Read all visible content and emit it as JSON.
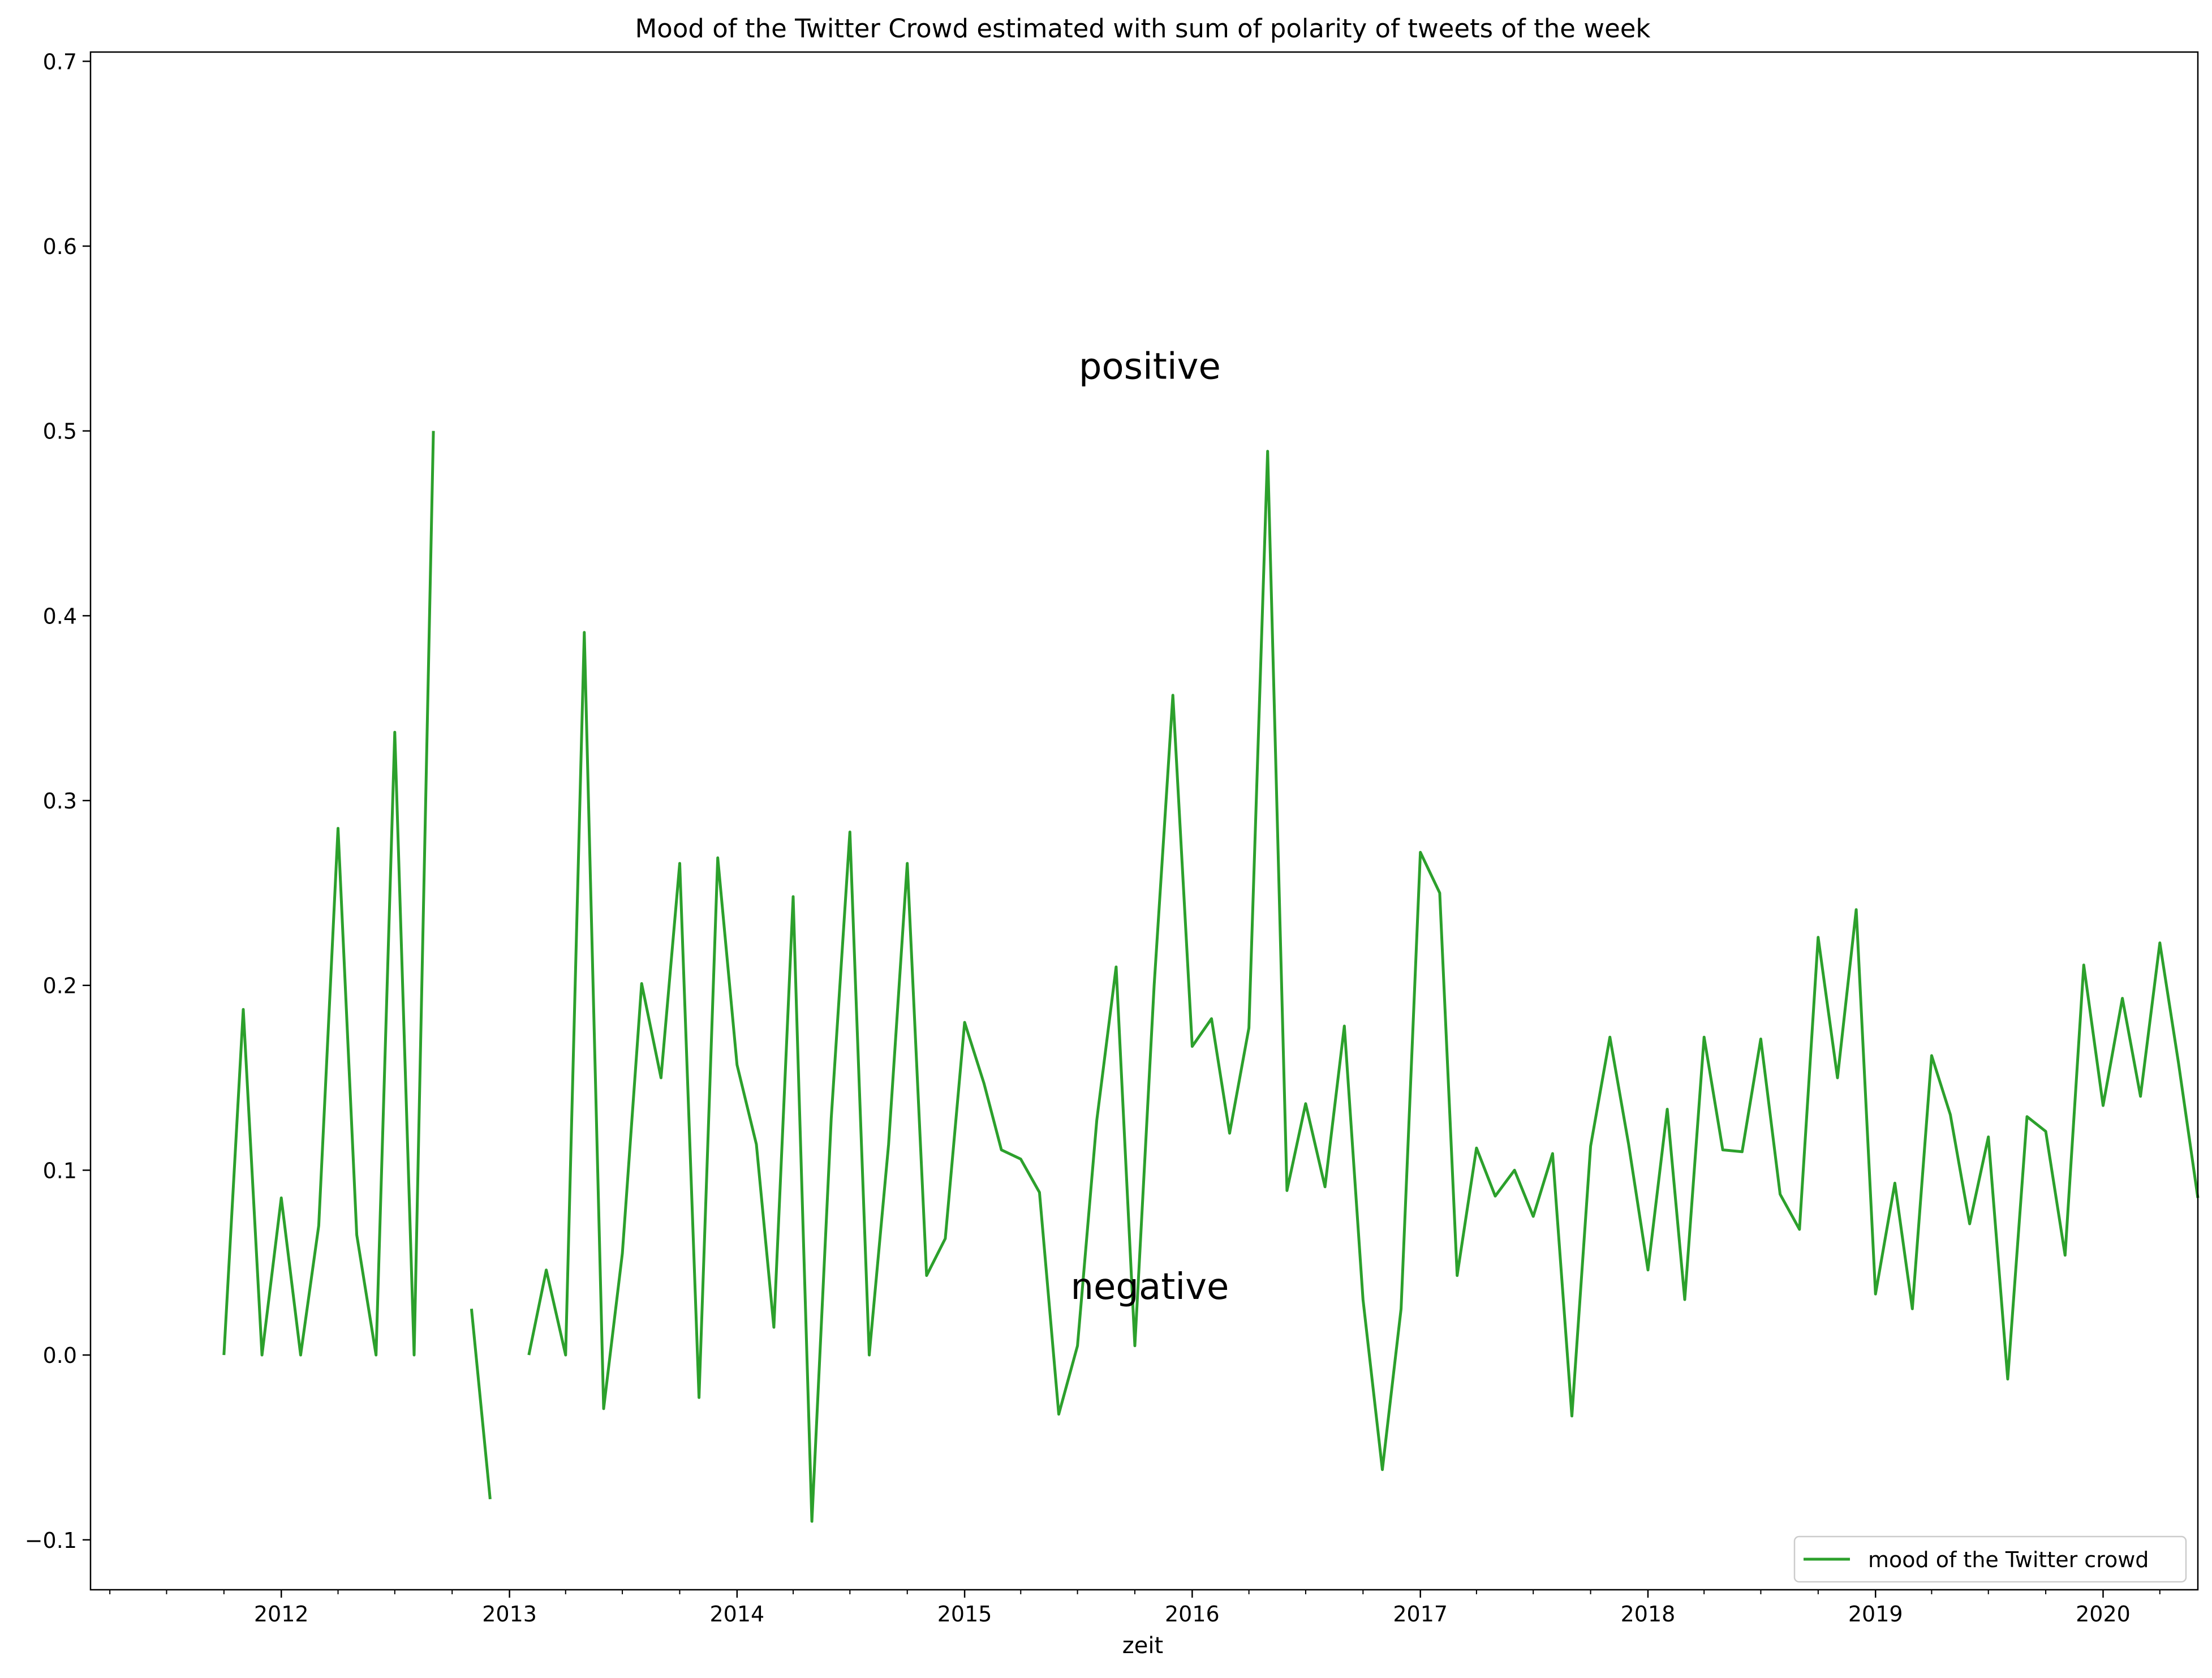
{
  "chart_data": {
    "type": "line",
    "title": "Mood of the Twitter Crowd estimated with sum of polarity of tweets of the week",
    "xlabel": "zeit",
    "ylabel": "",
    "xlim": [
      "2011-03-01",
      "2020-06-01"
    ],
    "ylim": [
      -0.127,
      0.705
    ],
    "y_ticks": [
      -0.1,
      0.0,
      0.1,
      0.2,
      0.3,
      0.4,
      0.5,
      0.6,
      0.7
    ],
    "y_tick_labels": [
      "−0.1",
      "0.0",
      "0.1",
      "0.2",
      "0.3",
      "0.4",
      "0.5",
      "0.6",
      "0.7"
    ],
    "x_ticks": [
      "2012-01-01",
      "2013-01-01",
      "2014-01-01",
      "2015-01-01",
      "2016-01-01",
      "2017-01-01",
      "2018-01-01",
      "2019-01-01",
      "2020-01-01"
    ],
    "x_tick_labels": [
      "2012",
      "2013",
      "2014",
      "2015",
      "2016",
      "2017",
      "2018",
      "2019",
      "2020"
    ],
    "grid": false,
    "legend_position": "lower-right",
    "annotations": [
      {
        "text": "positive",
        "x": "2015-10-25",
        "y": 0.535
      },
      {
        "text": "negative",
        "x": "2015-10-25",
        "y": 0.037
      }
    ],
    "series": [
      {
        "name": "mood of the Twitter crowd",
        "color": "#2ca02c",
        "points": [
          [
            "2011-10-01",
            0.0
          ],
          [
            "2011-11-01",
            0.187
          ],
          [
            "2011-12-01",
            0.0
          ],
          [
            "2012-01-01",
            0.085
          ],
          [
            "2012-02-01",
            0.0
          ],
          [
            "2012-03-01",
            0.07
          ],
          [
            "2012-04-01",
            0.285
          ],
          [
            "2012-05-01",
            0.065
          ],
          [
            "2012-06-01",
            0.0
          ],
          [
            "2012-07-01",
            0.337
          ],
          [
            "2012-08-01",
            0.0
          ],
          [
            "2012-09-01",
            0.5
          ],
          [
            "2012-10-01",
            null
          ],
          [
            "2012-11-01",
            0.025
          ],
          [
            "2012-12-01",
            -0.078
          ],
          [
            "2013-01-01",
            null
          ],
          [
            "2013-02-01",
            0.0
          ],
          [
            "2013-03-01",
            0.046
          ],
          [
            "2013-04-01",
            0.0
          ],
          [
            "2013-05-01",
            0.391
          ],
          [
            "2013-06-01",
            -0.029
          ],
          [
            "2013-07-01",
            0.055
          ],
          [
            "2013-08-01",
            0.201
          ],
          [
            "2013-09-01",
            0.15
          ],
          [
            "2013-10-01",
            0.266
          ],
          [
            "2013-11-01",
            -0.023
          ],
          [
            "2013-12-01",
            0.269
          ],
          [
            "2014-01-01",
            0.157
          ],
          [
            "2014-02-01",
            0.114
          ],
          [
            "2014-03-01",
            0.015
          ],
          [
            "2014-04-01",
            0.248
          ],
          [
            "2014-05-01",
            -0.09
          ],
          [
            "2014-06-01",
            0.128
          ],
          [
            "2014-07-01",
            0.283
          ],
          [
            "2014-08-01",
            0.0
          ],
          [
            "2014-09-01",
            0.114
          ],
          [
            "2014-10-01",
            0.266
          ],
          [
            "2014-11-01",
            0.043
          ],
          [
            "2014-12-01",
            0.063
          ],
          [
            "2015-01-01",
            0.18
          ],
          [
            "2015-02-01",
            0.147
          ],
          [
            "2015-03-01",
            0.111
          ],
          [
            "2015-04-01",
            0.106
          ],
          [
            "2015-05-01",
            0.088
          ],
          [
            "2015-06-01",
            -0.032
          ],
          [
            "2015-07-01",
            0.005
          ],
          [
            "2015-08-01",
            0.127
          ],
          [
            "2015-09-01",
            0.21
          ],
          [
            "2015-10-01",
            0.005
          ],
          [
            "2015-11-01",
            0.2
          ],
          [
            "2015-12-01",
            0.357
          ],
          [
            "2016-01-01",
            0.167
          ],
          [
            "2016-02-01",
            0.182
          ],
          [
            "2016-03-01",
            0.12
          ],
          [
            "2016-04-01",
            0.177
          ],
          [
            "2016-05-01",
            0.489
          ],
          [
            "2016-06-01",
            0.089
          ],
          [
            "2016-07-01",
            0.136
          ],
          [
            "2016-08-01",
            0.091
          ],
          [
            "2016-09-01",
            0.178
          ],
          [
            "2016-10-01",
            0.03
          ],
          [
            "2016-11-01",
            -0.062
          ],
          [
            "2016-12-01",
            0.025
          ],
          [
            "2017-01-01",
            0.272
          ],
          [
            "2017-02-01",
            0.25
          ],
          [
            "2017-03-01",
            0.043
          ],
          [
            "2017-04-01",
            0.112
          ],
          [
            "2017-05-01",
            0.086
          ],
          [
            "2017-06-01",
            0.1
          ],
          [
            "2017-07-01",
            0.075
          ],
          [
            "2017-08-01",
            0.109
          ],
          [
            "2017-09-01",
            -0.033
          ],
          [
            "2017-10-01",
            0.113
          ],
          [
            "2017-11-01",
            0.172
          ],
          [
            "2017-12-01",
            0.114
          ],
          [
            "2018-01-01",
            0.046
          ],
          [
            "2018-02-01",
            0.133
          ],
          [
            "2018-03-01",
            0.03
          ],
          [
            "2018-04-01",
            0.172
          ],
          [
            "2018-05-01",
            0.111
          ],
          [
            "2018-06-01",
            0.11
          ],
          [
            "2018-07-01",
            0.171
          ],
          [
            "2018-08-01",
            0.087
          ],
          [
            "2018-09-01",
            0.068
          ],
          [
            "2018-10-01",
            0.226
          ],
          [
            "2018-11-01",
            0.15
          ],
          [
            "2018-12-01",
            0.241
          ],
          [
            "2019-01-01",
            0.033
          ],
          [
            "2019-02-01",
            0.093
          ],
          [
            "2019-03-01",
            0.025
          ],
          [
            "2019-04-01",
            0.162
          ],
          [
            "2019-05-01",
            0.13
          ],
          [
            "2019-06-01",
            0.071
          ],
          [
            "2019-07-01",
            0.118
          ],
          [
            "2019-08-01",
            -0.013
          ],
          [
            "2019-09-01",
            0.129
          ],
          [
            "2019-10-01",
            0.121
          ],
          [
            "2019-11-01",
            0.054
          ],
          [
            "2019-12-01",
            0.211
          ],
          [
            "2020-01-01",
            0.135
          ],
          [
            "2020-02-01",
            0.193
          ],
          [
            "2020-03-01",
            0.14
          ],
          [
            "2020-04-01",
            0.223
          ],
          [
            "2020-05-01",
            0.158
          ],
          [
            "2020-06-01",
            0.085
          ]
        ]
      }
    ]
  }
}
